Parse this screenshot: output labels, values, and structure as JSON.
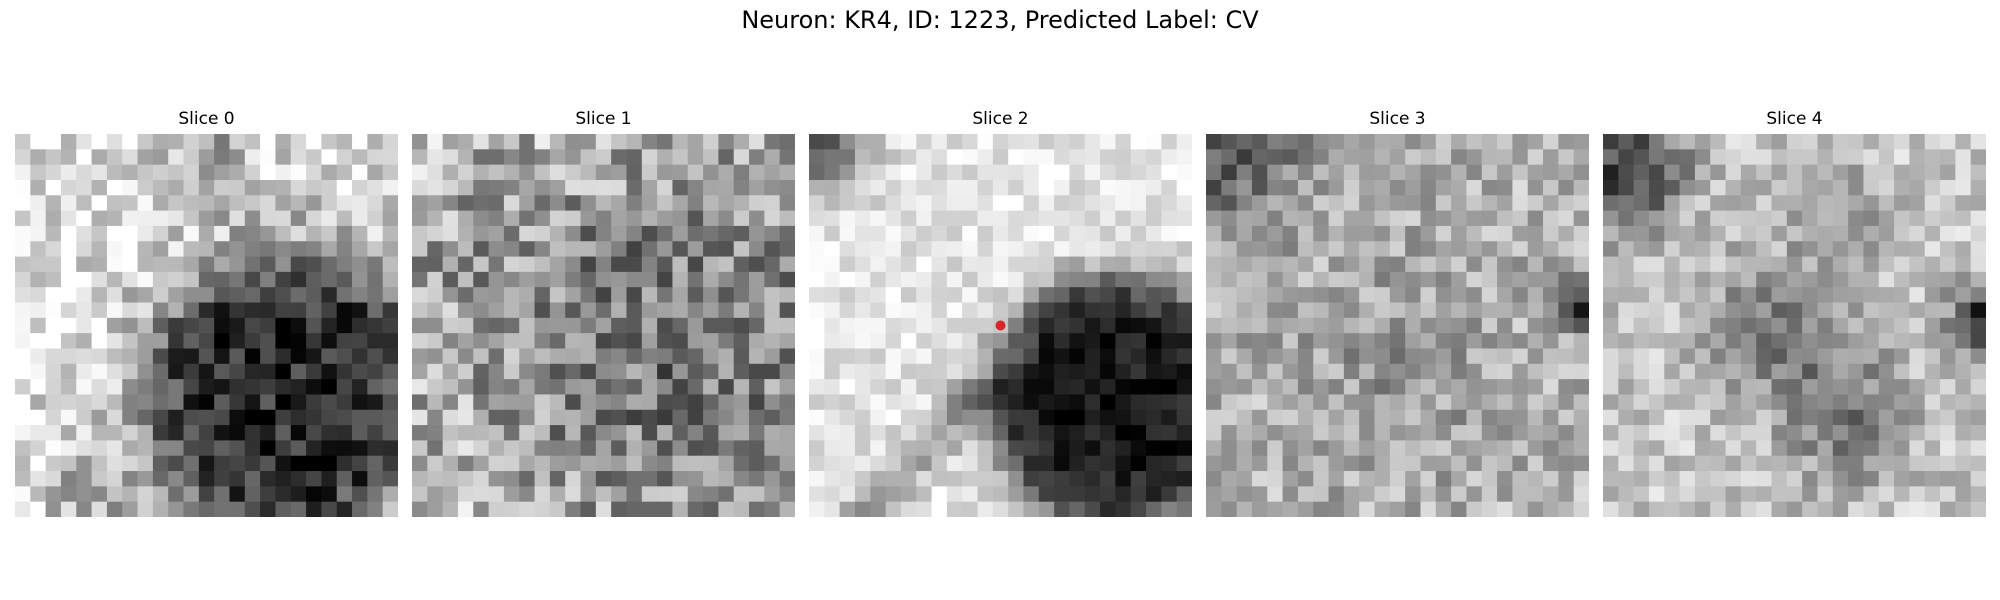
{
  "figure": {
    "title": "Neuron: KR4, ID: 1223, Predicted Label: CV"
  },
  "panels": [
    {
      "title": "Slice 0",
      "has_marker": false
    },
    {
      "title": "Slice 1",
      "has_marker": false
    },
    {
      "title": "Slice 2",
      "has_marker": true
    },
    {
      "title": "Slice 3",
      "has_marker": false
    },
    {
      "title": "Slice 4",
      "has_marker": false
    }
  ],
  "marker": {
    "color": "#d62728",
    "shape": "circle-marker-icon"
  },
  "colormap": "gray"
}
